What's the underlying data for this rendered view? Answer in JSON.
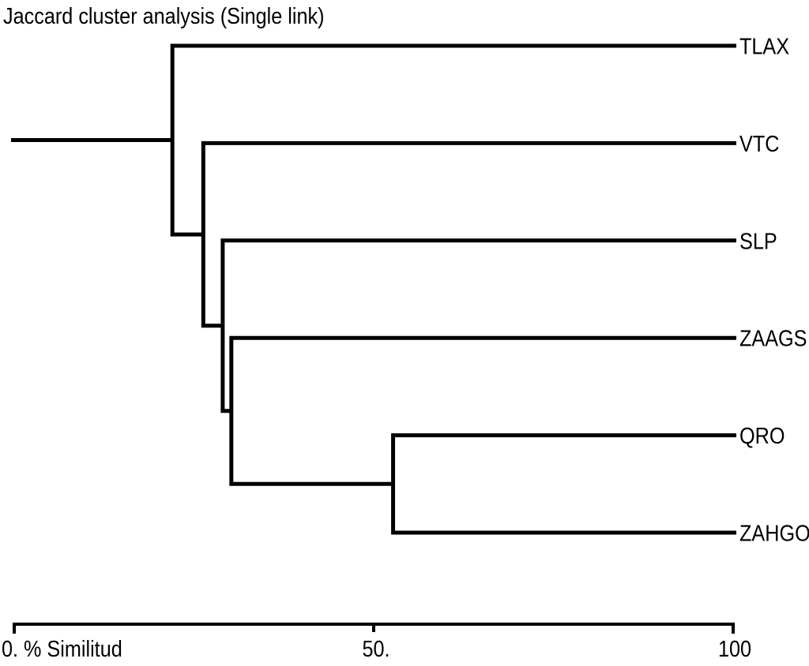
{
  "chart_data": {
    "type": "dendrogram",
    "orientation": "horizontal",
    "title": "Jaccard cluster analysis (Single link)",
    "axis_label": "% Similitud",
    "axis_range": [
      0,
      100
    ],
    "axis_ticks": [
      {
        "label": "0.",
        "value": 0
      },
      {
        "label": "50.",
        "value": 50
      },
      {
        "label": "100",
        "value": 100
      }
    ],
    "leaves": [
      "TLAX",
      "VTC",
      "SLP",
      "ZAAGS",
      "QRO",
      "ZAHGO"
    ],
    "line_color": "#000000",
    "background_color": "#ffffff",
    "legend": "none",
    "grid": false,
    "merges": [
      {
        "joins": [
          "QRO",
          "ZAHGO"
        ],
        "similarity": 52.7
      },
      {
        "joins": [
          "ZAAGS",
          "{QRO, ZAHGO}"
        ],
        "similarity": 30.2
      },
      {
        "joins": [
          "SLP",
          "{ZAAGS, QRO, ZAHGO}"
        ],
        "similarity": 29.0
      },
      {
        "joins": [
          "VTC",
          "{SLP, ZAAGS, QRO, ZAHGO}"
        ],
        "similarity": 26.3
      },
      {
        "joins": [
          "TLAX",
          "{VTC, SLP, ZAAGS, QRO, ZAHGO}"
        ],
        "similarity": 22.0
      }
    ],
    "tree": {
      "similarity": 22.0,
      "children": [
        {
          "leaf": "TLAX"
        },
        {
          "similarity": 26.3,
          "children": [
            {
              "leaf": "VTC"
            },
            {
              "similarity": 29.0,
              "children": [
                {
                  "leaf": "SLP"
                },
                {
                  "similarity": 30.2,
                  "children": [
                    {
                      "leaf": "ZAAGS"
                    },
                    {
                      "similarity": 52.7,
                      "children": [
                        {
                          "leaf": "QRO"
                        },
                        {
                          "leaf": "ZAHGO"
                        }
                      ]
                    }
                  ]
                }
              ]
            }
          ]
        }
      ]
    }
  }
}
